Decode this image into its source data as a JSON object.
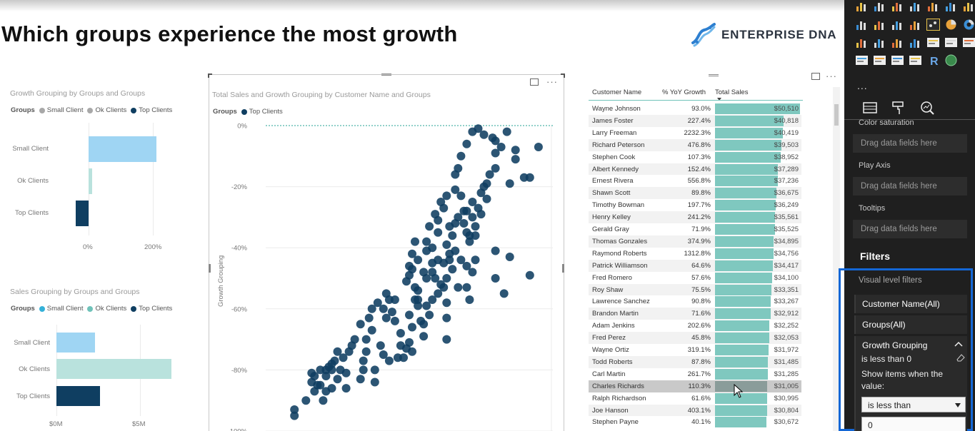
{
  "page": {
    "title": "Which groups experience the most growth"
  },
  "logo": {
    "text": "ENTERPRISE DNA"
  },
  "growth_chart": {
    "title": "Growth Grouping by Groups and Groups",
    "legend_title": "Groups",
    "legend": [
      {
        "name": "Small Client",
        "color": "#a8a8a8"
      },
      {
        "name": "Ok Clients",
        "color": "#a8a8a8"
      },
      {
        "name": "Top Clients",
        "color": "#0f3e61"
      }
    ],
    "chart_data": {
      "type": "bar",
      "orientation": "horizontal",
      "categories": [
        "Small Client",
        "Ok Clients",
        "Top Clients"
      ],
      "values": [
        210,
        10,
        -40
      ],
      "colors": [
        "#9fd5f3",
        "#b9e2dd",
        "#0f3e61"
      ],
      "ticks": [
        "0%",
        "200%"
      ],
      "xlim": [
        -55,
        270
      ]
    }
  },
  "sales_chart": {
    "title": "Sales Grouping by Groups and Groups",
    "legend_title": "Groups",
    "legend": [
      {
        "name": "Small Client",
        "color": "#34b1d8"
      },
      {
        "name": "Ok Clients",
        "color": "#6fc2b9"
      },
      {
        "name": "Top Clients",
        "color": "#0f3e61"
      }
    ],
    "chart_data": {
      "type": "bar",
      "orientation": "horizontal",
      "categories": [
        "Small Client",
        "Ok Clients",
        "Top Clients"
      ],
      "values": [
        2.3,
        6.9,
        2.6
      ],
      "unit": "M",
      "colors": [
        "#9fd5f3",
        "#b9e2dd",
        "#0f3e61"
      ],
      "ticks": [
        "$0M",
        "$5M"
      ],
      "xlim": [
        0,
        8
      ]
    }
  },
  "scatter": {
    "title": "Total Sales and Growth Grouping by Customer Name and Groups",
    "legend_title": "Groups",
    "legend": [
      {
        "name": "Top Clients",
        "color": "#0f3e61"
      }
    ],
    "ylabel": "Growth Grouping",
    "yticks": [
      "0%",
      "-20%",
      "-40%",
      "-60%",
      "-80%",
      "-100%"
    ],
    "chart_data": {
      "type": "scatter",
      "ylabel": "Growth Grouping",
      "ylim": [
        -100,
        0
      ],
      "xlim": [
        0,
        100
      ],
      "series": [
        {
          "name": "Top Clients",
          "color": "#0f3e61",
          "points": [
            [
              10,
              -93
            ],
            [
              10,
              -95
            ],
            [
              14,
              -90
            ],
            [
              17,
              -87
            ],
            [
              16,
              -84
            ],
            [
              16,
              -81
            ],
            [
              17,
              -82
            ],
            [
              19,
              -80
            ],
            [
              19,
              -85
            ],
            [
              21,
              -82
            ],
            [
              21,
              -80
            ],
            [
              22,
              -79
            ],
            [
              23,
              -80
            ],
            [
              23,
              -78
            ],
            [
              24,
              -77
            ],
            [
              26,
              -80
            ],
            [
              27,
              -76
            ],
            [
              25,
              -74
            ],
            [
              29,
              -74
            ],
            [
              30,
              -72
            ],
            [
              31,
              -70
            ],
            [
              35,
              -70
            ],
            [
              34,
              -77
            ],
            [
              35,
              -74
            ],
            [
              37,
              -67
            ],
            [
              36,
              -63
            ],
            [
              37,
              -60
            ],
            [
              39,
              -58
            ],
            [
              41,
              -60
            ],
            [
              42,
              -55
            ],
            [
              43,
              -57
            ],
            [
              44,
              -61
            ],
            [
              45,
              -64
            ],
            [
              47,
              -68
            ],
            [
              47,
              -72
            ],
            [
              42,
              -63
            ],
            [
              49,
              -51
            ],
            [
              50,
              -49
            ],
            [
              51,
              -47
            ],
            [
              52,
              -53
            ],
            [
              53,
              -59
            ],
            [
              54,
              -64
            ],
            [
              55,
              -65
            ],
            [
              56,
              -50
            ],
            [
              58,
              -48
            ],
            [
              59,
              -50
            ],
            [
              61,
              -52
            ],
            [
              62,
              -45
            ],
            [
              60,
              -44
            ],
            [
              64,
              -42
            ],
            [
              63,
              -39
            ],
            [
              65,
              -36
            ],
            [
              66,
              -32
            ],
            [
              67,
              -30
            ],
            [
              69,
              -32
            ],
            [
              70,
              -35
            ],
            [
              71,
              -36
            ],
            [
              72,
              -30
            ],
            [
              69,
              -28
            ],
            [
              72,
              -25
            ],
            [
              74,
              -27
            ],
            [
              75,
              -22
            ],
            [
              76,
              -20
            ],
            [
              77,
              -19
            ],
            [
              78,
              -16
            ],
            [
              80,
              -14
            ],
            [
              73,
              -36
            ],
            [
              70,
              -28
            ],
            [
              68,
              -23
            ],
            [
              66,
              -21
            ],
            [
              62,
              -27
            ],
            [
              60,
              -31
            ],
            [
              57,
              -33
            ],
            [
              56,
              -38
            ],
            [
              59,
              -29
            ],
            [
              61,
              -25
            ],
            [
              63,
              -23
            ],
            [
              66,
              -16
            ],
            [
              67,
              -14
            ],
            [
              68,
              -10
            ],
            [
              70,
              -6
            ],
            [
              72,
              -2
            ],
            [
              74,
              -1
            ],
            [
              76,
              -3
            ],
            [
              79,
              -4
            ],
            [
              80,
              -5
            ],
            [
              84,
              -2
            ],
            [
              87,
              -8
            ],
            [
              95,
              -7
            ],
            [
              80,
              -9
            ],
            [
              82,
              -7
            ],
            [
              87,
              -11
            ],
            [
              90,
              -17
            ],
            [
              92,
              -17
            ],
            [
              85,
              -19
            ],
            [
              77,
              -24
            ],
            [
              75,
              -29
            ],
            [
              73,
              -33
            ],
            [
              71,
              -38
            ],
            [
              66,
              -41
            ],
            [
              64,
              -44
            ],
            [
              65,
              -47
            ],
            [
              72,
              -48
            ],
            [
              67,
              -53
            ],
            [
              62,
              -53
            ],
            [
              60,
              -55
            ],
            [
              63,
              -58
            ],
            [
              58,
              -57
            ],
            [
              56,
              -59
            ],
            [
              53,
              -57
            ],
            [
              52,
              -57
            ],
            [
              50,
              -62
            ],
            [
              51,
              -66
            ],
            [
              50,
              -71
            ],
            [
              49,
              -73
            ],
            [
              48,
              -76
            ],
            [
              55,
              -69
            ],
            [
              51,
              -74
            ],
            [
              46,
              -76
            ],
            [
              43,
              -77
            ],
            [
              41,
              -75
            ],
            [
              38,
              -80
            ],
            [
              34,
              -80
            ],
            [
              33,
              -83
            ],
            [
              28,
              -81
            ],
            [
              25,
              -83
            ],
            [
              23,
              -86
            ],
            [
              21,
              -87
            ],
            [
              20,
              -90
            ],
            [
              18,
              -85
            ],
            [
              28,
              -86
            ],
            [
              38,
              -84
            ],
            [
              40,
              -72
            ],
            [
              33,
              -65
            ],
            [
              45,
              -57
            ],
            [
              57,
              -62
            ],
            [
              63,
              -63
            ],
            [
              71,
              -57
            ],
            [
              80,
              -50
            ],
            [
              92,
              -49
            ],
            [
              70,
              -53
            ],
            [
              83,
              -55
            ],
            [
              63,
              -70
            ],
            [
              53,
              -54
            ],
            [
              85,
              -43
            ],
            [
              80,
              -41
            ],
            [
              73,
              -44
            ],
            [
              70,
              -46
            ],
            [
              68,
              -44
            ],
            [
              63,
              -50
            ],
            [
              58,
              -45
            ],
            [
              55,
              -48
            ],
            [
              53,
              -44
            ],
            [
              51,
              -42
            ],
            [
              50,
              -46
            ],
            [
              58,
              -40
            ],
            [
              56,
              -41
            ],
            [
              52,
              -38
            ],
            [
              60,
              -35
            ],
            [
              64,
              -33
            ]
          ]
        }
      ]
    }
  },
  "table": {
    "columns": [
      "Customer Name",
      "% YoY Growth",
      "Total Sales"
    ],
    "sales_max": 50510,
    "rows": [
      {
        "name": "Wayne Johnson",
        "growth": "93.0%",
        "sales": "$50,510",
        "sales_value": 50510
      },
      {
        "name": "James Foster",
        "growth": "227.4%",
        "sales": "$40,818",
        "sales_value": 40818
      },
      {
        "name": "Larry Freeman",
        "growth": "2232.3%",
        "sales": "$40,419",
        "sales_value": 40419
      },
      {
        "name": "Richard Peterson",
        "growth": "476.8%",
        "sales": "$39,503",
        "sales_value": 39503
      },
      {
        "name": "Stephen Cook",
        "growth": "107.3%",
        "sales": "$38,952",
        "sales_value": 38952
      },
      {
        "name": "Albert Kennedy",
        "growth": "152.4%",
        "sales": "$37,289",
        "sales_value": 37289
      },
      {
        "name": "Ernest Rivera",
        "growth": "556.8%",
        "sales": "$37,236",
        "sales_value": 37236
      },
      {
        "name": "Shawn Scott",
        "growth": "89.8%",
        "sales": "$36,675",
        "sales_value": 36675
      },
      {
        "name": "Timothy Bowman",
        "growth": "197.7%",
        "sales": "$36,249",
        "sales_value": 36249
      },
      {
        "name": "Henry Kelley",
        "growth": "241.2%",
        "sales": "$35,561",
        "sales_value": 35561
      },
      {
        "name": "Gerald Gray",
        "growth": "71.9%",
        "sales": "$35,525",
        "sales_value": 35525
      },
      {
        "name": "Thomas Gonzales",
        "growth": "374.9%",
        "sales": "$34,895",
        "sales_value": 34895
      },
      {
        "name": "Raymond Roberts",
        "growth": "1312.8%",
        "sales": "$34,756",
        "sales_value": 34756
      },
      {
        "name": "Patrick Williamson",
        "growth": "64.6%",
        "sales": "$34,417",
        "sales_value": 34417
      },
      {
        "name": "Fred Romero",
        "growth": "57.6%",
        "sales": "$34,100",
        "sales_value": 34100
      },
      {
        "name": "Roy Shaw",
        "growth": "75.5%",
        "sales": "$33,351",
        "sales_value": 33351
      },
      {
        "name": "Lawrence Sanchez",
        "growth": "90.8%",
        "sales": "$33,267",
        "sales_value": 33267
      },
      {
        "name": "Brandon Martin",
        "growth": "71.6%",
        "sales": "$32,912",
        "sales_value": 32912
      },
      {
        "name": "Adam Jenkins",
        "growth": "202.6%",
        "sales": "$32,252",
        "sales_value": 32252
      },
      {
        "name": "Fred Perez",
        "growth": "45.8%",
        "sales": "$32,053",
        "sales_value": 32053
      },
      {
        "name": "Wayne Ortiz",
        "growth": "319.1%",
        "sales": "$31,972",
        "sales_value": 31972
      },
      {
        "name": "Todd Roberts",
        "growth": "87.8%",
        "sales": "$31,485",
        "sales_value": 31485
      },
      {
        "name": "Carl Martin",
        "growth": "261.7%",
        "sales": "$31,285",
        "sales_value": 31285
      },
      {
        "name": "Charles Richards",
        "growth": "110.3%",
        "sales": "$31,005",
        "sales_value": 31005
      },
      {
        "name": "Ralph Richardson",
        "growth": "61.6%",
        "sales": "$30,995",
        "sales_value": 30995
      },
      {
        "name": "Joe Hanson",
        "growth": "403.1%",
        "sales": "$30,804",
        "sales_value": 30804
      },
      {
        "name": "Stephen Payne",
        "growth": "40.1%",
        "sales": "$30,672",
        "sales_value": 30672
      }
    ]
  },
  "pane": {
    "more": "...",
    "fields": [
      {
        "label": "Color saturation",
        "drop": "Drag data fields here"
      },
      {
        "label": "Play Axis",
        "drop": "Drag data fields here"
      },
      {
        "label": "Tooltips",
        "drop": "Drag data fields here"
      }
    ],
    "filters_title": "Filters",
    "visual_level": "Visual level filters",
    "filter_customer": "Customer Name(All)",
    "filter_groups": "Groups(All)",
    "filter_growth": "Growth Grouping",
    "filter_growth_sub": "is less than 0",
    "show_items": "Show items when the value:",
    "condition": "is less than",
    "condition_value": "0"
  }
}
